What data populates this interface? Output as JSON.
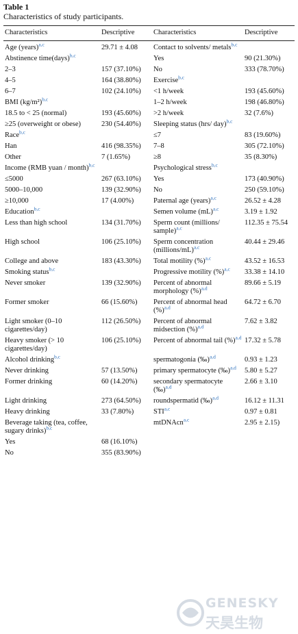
{
  "table": {
    "number": "Table 1",
    "caption": "Characteristics of study participants.",
    "header": [
      "Characteristics",
      "Descriptive",
      "Characteristics",
      "Descriptive"
    ],
    "rows": [
      [
        {
          "text": "Age (years)",
          "sup": "a,c"
        },
        "29.71 ± 4.08",
        {
          "text": "Contact to solvents/ metals",
          "sup": "b,c"
        },
        null
      ],
      [
        {
          "text": "Abstinence time(days)",
          "sup": "b,c"
        },
        null,
        "Yes",
        "90 (21.30%)"
      ],
      [
        "2–3",
        "157 (37.10%)",
        "No",
        "333 (78.70%)"
      ],
      [
        "4–5",
        "164 (38.80%)",
        {
          "text": "Exercise",
          "sup": "b,c"
        },
        null
      ],
      [
        "6–7",
        "102 (24.10%)",
        "<1 h/week",
        "193 (45.60%)"
      ],
      [
        {
          "text": "BMI (kg/m²)",
          "sup": "b,c"
        },
        null,
        "1–2 h/week",
        "198 (46.80%)"
      ],
      [
        "18.5 to < 25 (normal)",
        "193 (45.60%)",
        ">2 h/week",
        "32 (7.6%)"
      ],
      [
        "≥25 (overweight or obese)",
        "230 (54.40%)",
        {
          "text": "Sleeping status (hrs/ day)",
          "sup": "b,c"
        },
        null
      ],
      [
        {
          "text": "Race",
          "sup": "b,c"
        },
        null,
        "≤7",
        "83 (19.60%)"
      ],
      [
        "Han",
        "416 (98.35%)",
        "7–8",
        "305 (72.10%)"
      ],
      [
        "Other",
        "7 (1.65%)",
        "≥8",
        "35 (8.30%)"
      ],
      [
        {
          "text": "Income (RMB yuan / month)",
          "sup": "b,c"
        },
        null,
        {
          "text": "Psychological stress",
          "sup": "b,c"
        },
        null
      ],
      [
        "≤5000",
        "267 (63.10%)",
        "Yes",
        "173 (40.90%)"
      ],
      [
        "5000–10,000",
        "139 (32.90%)",
        "No",
        "250 (59.10%)"
      ],
      [
        "≥10,000",
        "17 (4.00%)",
        {
          "text": "Paternal age (years)",
          "sup": "a,c"
        },
        "26.52 ± 4.28"
      ],
      [
        {
          "text": "Education",
          "sup": "b,c"
        },
        null,
        {
          "text": "Semen volume (mL)",
          "sup": "a,c"
        },
        "3.19 ± 1.92"
      ],
      [
        "Less than high school",
        "134 (31.70%)",
        {
          "text": "Sperm count (millions/ sample)",
          "sup": "a,c"
        },
        "112.35 ± 75.54"
      ],
      [
        "High school",
        "106 (25.10%)",
        {
          "text": "Sperm concentration (millions/mL)",
          "sup": "a,c"
        },
        "40.44 ± 29.46"
      ],
      [
        "College and above",
        "183 (43.30%)",
        {
          "text": "Total motility (%)",
          "sup": "a,c"
        },
        "43.52 ± 16.53"
      ],
      [
        {
          "text": "Smoking status",
          "sup": "b,c"
        },
        null,
        {
          "text": "Progressive motility (%)",
          "sup": "a,c"
        },
        "33.38 ± 14.10"
      ],
      [
        "Never smoker",
        "139 (32.90%)",
        {
          "text": "Percent of abnormal morphology (%)",
          "sup": "a,d"
        },
        "89.66 ± 5.19"
      ],
      [
        "Former smoker",
        "66 (15.60%)",
        {
          "text": "Percent of abnormal head (%)",
          "sup": "a,d"
        },
        "64.72 ± 6.70"
      ],
      [
        "Light smoker (0–10 cigarettes/day)",
        "112 (26.50%)",
        {
          "text": "Percent of abnormal midsection (%)",
          "sup": "a,d"
        },
        "7.62 ± 3.82"
      ],
      [
        "Heavy smoker (> 10 cigarettes/day)",
        "106 (25.10%)",
        {
          "text": "Percent of abnormal tail (%)",
          "sup": "a,d"
        },
        "17.32 ± 5.78"
      ],
      [
        {
          "text": "Alcohol drinking",
          "sup": "b,c"
        },
        null,
        {
          "text": "spermatogonia (‰)",
          "sup": "a,d"
        },
        "0.93 ± 1.23"
      ],
      [
        "Never drinking",
        "57 (13.50%)",
        {
          "text": "primary spermatocyte (‰)",
          "sup": "a,d"
        },
        "5.80 ± 5.27"
      ],
      [
        "Former drinking",
        "60 (14.20%)",
        {
          "text": "secondary spermatocyte (‰)",
          "sup": "a,d"
        },
        "2.66 ± 3.10"
      ],
      [
        "Light drinking",
        "273 (64.50%)",
        {
          "text": "roundspermatid (‰)",
          "sup": "a,d"
        },
        "16.12 ± 11.31"
      ],
      [
        "Heavy drinking",
        "33 (7.80%)",
        {
          "text": "STI",
          "sup": "a,c"
        },
        "0.97 ± 0.81"
      ],
      [
        {
          "text": "Beverage taking (tea, coffee, sugary drinks)",
          "sup": "b,c"
        },
        null,
        {
          "text": "mtDNAcn",
          "sup": "a,c"
        },
        "2.95 ± 2.15)"
      ],
      [
        "Yes",
        "68 (16.10%)",
        null,
        null
      ],
      [
        "No",
        "355 (83.90%)",
        null,
        null
      ]
    ]
  },
  "watermark": {
    "en": "GENESKY",
    "cn": "天昊生物"
  }
}
